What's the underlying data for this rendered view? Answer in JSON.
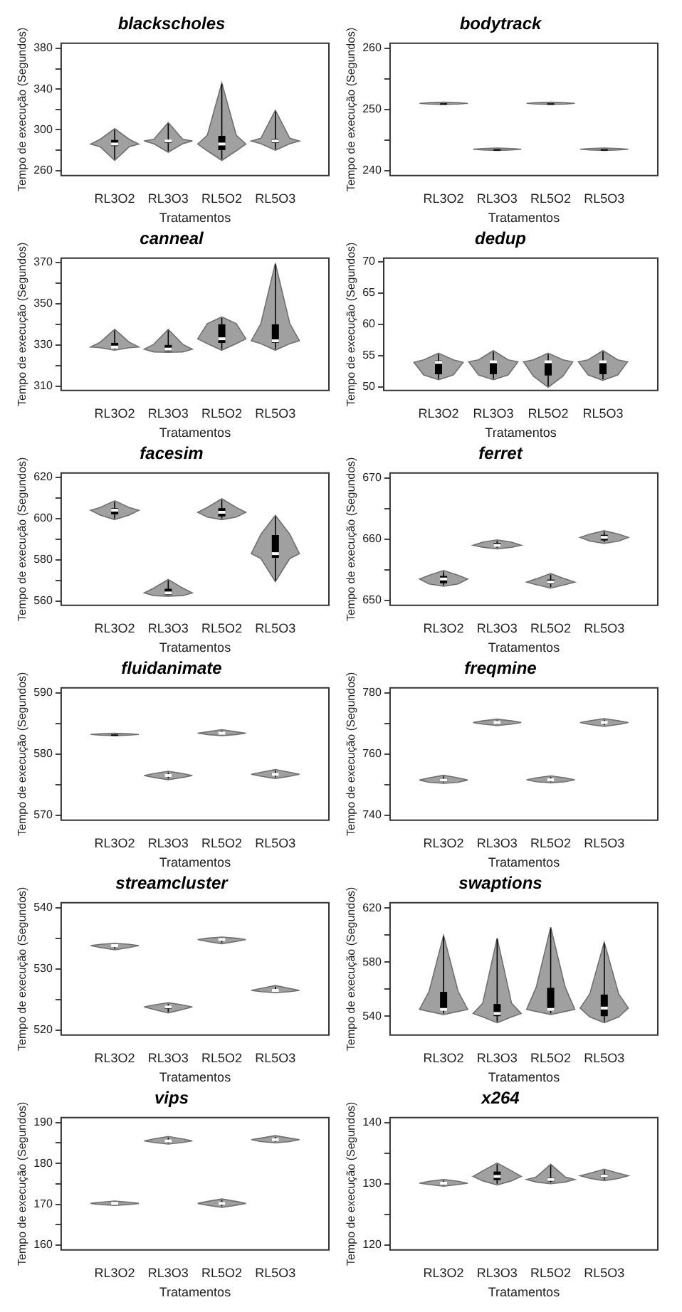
{
  "chart_data": [
    {
      "type": "box",
      "title": "blackscholes",
      "xlabel": "Tratamentos",
      "ylabel": "Tempo de execução (Segundos)",
      "categories": [
        "RL3O2",
        "RL3O3",
        "RL5O2",
        "RL5O3"
      ],
      "ylim": [
        255,
        385
      ],
      "yticks": [
        260,
        {
          "value": 280,
          "label": null
        },
        300,
        {
          "value": 320,
          "label": null
        },
        340,
        {
          "value": 360,
          "label": null
        },
        380
      ],
      "boxes": [
        {
          "low": 271,
          "q1": 284,
          "median": 286,
          "q3": 290,
          "high": 300
        },
        {
          "low": 279,
          "q1": 287,
          "median": 289,
          "q3": 290,
          "high": 306
        },
        {
          "low": 271,
          "q1": 280,
          "median": 286,
          "q3": 294,
          "high": 345
        },
        {
          "low": 281,
          "q1": 287,
          "median": 289,
          "q3": 291,
          "high": 318
        }
      ]
    },
    {
      "type": "box",
      "title": "bodytrack",
      "xlabel": "Tratamentos",
      "ylabel": "Tempo de execução (Segundos)",
      "categories": [
        "RL3O2",
        "RL3O3",
        "RL5O2",
        "RL5O3"
      ],
      "ylim": [
        239.2,
        260.8
      ],
      "yticks": [
        240,
        {
          "value": 245,
          "label": null
        },
        250,
        {
          "value": 255,
          "label": null
        },
        260
      ],
      "boxes": [
        {
          "low": 251,
          "q1": 251,
          "median": 251,
          "q3": 251,
          "high": 251
        },
        {
          "low": 243.5,
          "q1": 243.5,
          "median": 243.5,
          "q3": 243.5,
          "high": 243.5
        },
        {
          "low": 251,
          "q1": 251,
          "median": 251,
          "q3": 251,
          "high": 251
        },
        {
          "low": 243.5,
          "q1": 243.5,
          "median": 243.5,
          "q3": 243.5,
          "high": 243.5
        }
      ]
    },
    {
      "type": "box",
      "title": "canneal",
      "xlabel": "Tratamentos",
      "ylabel": "Tempo de execução (Segundos)",
      "categories": [
        "RL3O2",
        "RL3O3",
        "RL5O2",
        "RL5O3"
      ],
      "ylim": [
        308,
        372
      ],
      "yticks": [
        310,
        {
          "value": 320,
          "label": null
        },
        330,
        {
          "value": 340,
          "label": null
        },
        350,
        {
          "value": 360,
          "label": null
        },
        370
      ],
      "boxes": [
        {
          "low": 328,
          "q1": 329,
          "median": 329,
          "q3": 331,
          "high": 337
        },
        {
          "low": 327,
          "q1": 327,
          "median": 328,
          "q3": 330,
          "high": 337
        },
        {
          "low": 328,
          "q1": 331,
          "median": 333,
          "q3": 340,
          "high": 343
        },
        {
          "low": 328,
          "q1": 331,
          "median": 332,
          "q3": 340,
          "high": 369
        }
      ]
    },
    {
      "type": "box",
      "title": "dedup",
      "xlabel": "Tratamentos",
      "ylabel": "Tempo de execução (Segundos)",
      "categories": [
        "RL3O2",
        "RL3O3",
        "RL5O2",
        "RL5O3"
      ],
      "ylim": [
        49.4,
        70.6
      ],
      "yticks": [
        50,
        55,
        60,
        65,
        70
      ],
      "boxes": [
        {
          "low": 51.3,
          "q1": 52,
          "median": 53.9,
          "q3": 54.2,
          "high": 55.2
        },
        {
          "low": 51.3,
          "q1": 52,
          "median": 54,
          "q3": 54.2,
          "high": 55.6
        },
        {
          "low": 50.1,
          "q1": 51.8,
          "median": 54,
          "q3": 54.2,
          "high": 55.2
        },
        {
          "low": 51.2,
          "q1": 52,
          "median": 54,
          "q3": 54.2,
          "high": 55.6
        }
      ]
    },
    {
      "type": "box",
      "title": "facesim",
      "xlabel": "Tratamentos",
      "ylabel": "Tempo de execução (Segundos)",
      "categories": [
        "RL3O2",
        "RL3O3",
        "RL5O2",
        "RL5O3"
      ],
      "ylim": [
        558,
        622
      ],
      "yticks": [
        560,
        {
          "value": 570,
          "label": null
        },
        580,
        {
          "value": 590,
          "label": null
        },
        600,
        {
          "value": 610,
          "label": null
        },
        620
      ],
      "boxes": [
        {
          "low": 600,
          "q1": 602,
          "median": 604,
          "q3": 605,
          "high": 608
        },
        {
          "low": 563,
          "q1": 563,
          "median": 564,
          "q3": 566,
          "high": 570
        },
        {
          "low": 600,
          "q1": 601,
          "median": 603,
          "q3": 605,
          "high": 609
        },
        {
          "low": 570,
          "q1": 581,
          "median": 583,
          "q3": 592,
          "high": 601
        }
      ]
    },
    {
      "type": "box",
      "title": "ferret",
      "xlabel": "Tratamentos",
      "ylabel": "Tempo de execução (Segundos)",
      "categories": [
        "RL3O2",
        "RL3O3",
        "RL5O2",
        "RL5O3"
      ],
      "ylim": [
        649.2,
        670.8
      ],
      "yticks": [
        650,
        {
          "value": 655,
          "label": null
        },
        660,
        {
          "value": 665,
          "label": null
        },
        670
      ],
      "boxes": [
        {
          "low": 652.5,
          "q1": 652.8,
          "median": 653.5,
          "q3": 654,
          "high": 654.7
        },
        {
          "low": 658.6,
          "q1": 658.8,
          "median": 659,
          "q3": 659.4,
          "high": 659.7
        },
        {
          "low": 652.2,
          "q1": 652.7,
          "median": 653,
          "q3": 653.4,
          "high": 654.2
        },
        {
          "low": 659.5,
          "q1": 659.8,
          "median": 660.3,
          "q3": 660.7,
          "high": 661.2
        }
      ]
    },
    {
      "type": "box",
      "title": "fluidanimate",
      "xlabel": "Tratamentos",
      "ylabel": "Tempo de execução (Segundos)",
      "categories": [
        "RL3O2",
        "RL3O3",
        "RL5O2",
        "RL5O3"
      ],
      "ylim": [
        569.2,
        590.8
      ],
      "yticks": [
        570,
        {
          "value": 575,
          "label": null
        },
        580,
        {
          "value": 585,
          "label": null
        },
        590
      ],
      "boxes": [
        {
          "low": 583.2,
          "q1": 583.2,
          "median": 583.2,
          "q3": 583.2,
          "high": 583.2
        },
        {
          "low": 576,
          "q1": 576.3,
          "median": 576.5,
          "q3": 576.7,
          "high": 577
        },
        {
          "low": 583.2,
          "q1": 583.3,
          "median": 583.4,
          "q3": 583.5,
          "high": 583.8
        },
        {
          "low": 576.2,
          "q1": 576.5,
          "median": 576.7,
          "q3": 576.9,
          "high": 577.3
        }
      ]
    },
    {
      "type": "box",
      "title": "freqmine",
      "xlabel": "Tratamentos",
      "ylabel": "Tempo de execução (Segundos)",
      "categories": [
        "RL3O2",
        "RL3O3",
        "RL5O2",
        "RL5O3"
      ],
      "ylim": [
        738.4,
        781.6
      ],
      "yticks": [
        740,
        {
          "value": 750,
          "label": null
        },
        760,
        {
          "value": 770,
          "label": null
        },
        780
      ],
      "boxes": [
        {
          "low": 750.8,
          "q1": 751,
          "median": 751.5,
          "q3": 752,
          "high": 752.7
        },
        {
          "low": 769.7,
          "q1": 770,
          "median": 770.3,
          "q3": 770.6,
          "high": 771
        },
        {
          "low": 751,
          "q1": 751.2,
          "median": 751.6,
          "q3": 752,
          "high": 752.5
        },
        {
          "low": 769.4,
          "q1": 769.9,
          "median": 770.3,
          "q3": 770.6,
          "high": 771.2
        }
      ]
    },
    {
      "type": "box",
      "title": "streamcluster",
      "xlabel": "Tratamentos",
      "ylabel": "Tempo de execução (Segundos)",
      "categories": [
        "RL3O2",
        "RL3O3",
        "RL5O2",
        "RL5O3"
      ],
      "ylim": [
        519.2,
        540.8
      ],
      "yticks": [
        520,
        {
          "value": 525,
          "label": null
        },
        530,
        {
          "value": 535,
          "label": null
        },
        540
      ],
      "boxes": [
        {
          "low": 533.3,
          "q1": 533.6,
          "median": 533.8,
          "q3": 533.9,
          "high": 534
        },
        {
          "low": 523,
          "q1": 523.5,
          "median": 523.8,
          "q3": 524,
          "high": 524.3
        },
        {
          "low": 534.3,
          "q1": 534.6,
          "median": 534.8,
          "q3": 534.9,
          "high": 535
        },
        {
          "low": 526.3,
          "q1": 526.4,
          "median": 526.5,
          "q3": 526.7,
          "high": 527.1
        }
      ]
    },
    {
      "type": "box",
      "title": "swaptions",
      "xlabel": "Tratamentos",
      "ylabel": "Tempo de execução (Segundos)",
      "categories": [
        "RL3O2",
        "RL3O3",
        "RL5O2",
        "RL5O3"
      ],
      "ylim": [
        526,
        624
      ],
      "yticks": [
        540,
        {
          "value": 560,
          "label": null
        },
        580,
        {
          "value": 600,
          "label": null
        },
        620
      ],
      "boxes": [
        {
          "low": 542,
          "q1": 544,
          "median": 545,
          "q3": 558,
          "high": 599
        },
        {
          "low": 536,
          "q1": 540,
          "median": 542,
          "q3": 549,
          "high": 597
        },
        {
          "low": 542,
          "q1": 544,
          "median": 545,
          "q3": 561,
          "high": 605
        },
        {
          "low": 536,
          "q1": 540,
          "median": 546,
          "q3": 556,
          "high": 594
        }
      ]
    },
    {
      "type": "box",
      "title": "vips",
      "xlabel": "Tratamentos",
      "ylabel": "Tempo de execução (Segundos)",
      "categories": [
        "RL3O2",
        "RL3O3",
        "RL5O2",
        "RL5O3"
      ],
      "ylim": [
        158.8,
        191.2
      ],
      "yticks": [
        160,
        {
          "value": 165,
          "label": null
        },
        170,
        {
          "value": 175,
          "label": null
        },
        180,
        {
          "value": 185,
          "label": null
        },
        190
      ],
      "boxes": [
        {
          "low": 170,
          "q1": 170.1,
          "median": 170.2,
          "q3": 170.3,
          "high": 170.5
        },
        {
          "low": 185,
          "q1": 185.3,
          "median": 185.5,
          "q3": 185.8,
          "high": 186.3
        },
        {
          "low": 169.5,
          "q1": 169.9,
          "median": 170.2,
          "q3": 170.5,
          "high": 171
        },
        {
          "low": 185.3,
          "q1": 185.5,
          "median": 185.8,
          "q3": 186,
          "high": 186.5
        }
      ]
    },
    {
      "type": "box",
      "title": "x264",
      "xlabel": "Tratamentos",
      "ylabel": "Tempo de execução (Segundos)",
      "categories": [
        "RL3O2",
        "RL3O3",
        "RL5O2",
        "RL5O3"
      ],
      "ylim": [
        119.2,
        140.8
      ],
      "yticks": [
        120,
        {
          "value": 125,
          "label": null
        },
        130,
        {
          "value": 135,
          "label": null
        },
        140
      ],
      "boxes": [
        {
          "low": 129.8,
          "q1": 130,
          "median": 130.1,
          "q3": 130.3,
          "high": 130.5
        },
        {
          "low": 130,
          "q1": 130.6,
          "median": 131.2,
          "q3": 132,
          "high": 133.2
        },
        {
          "low": 130.2,
          "q1": 130.4,
          "median": 130.7,
          "q3": 131,
          "high": 133
        },
        {
          "low": 130.7,
          "q1": 131,
          "median": 131.3,
          "q3": 131.6,
          "high": 132.2
        }
      ]
    }
  ]
}
